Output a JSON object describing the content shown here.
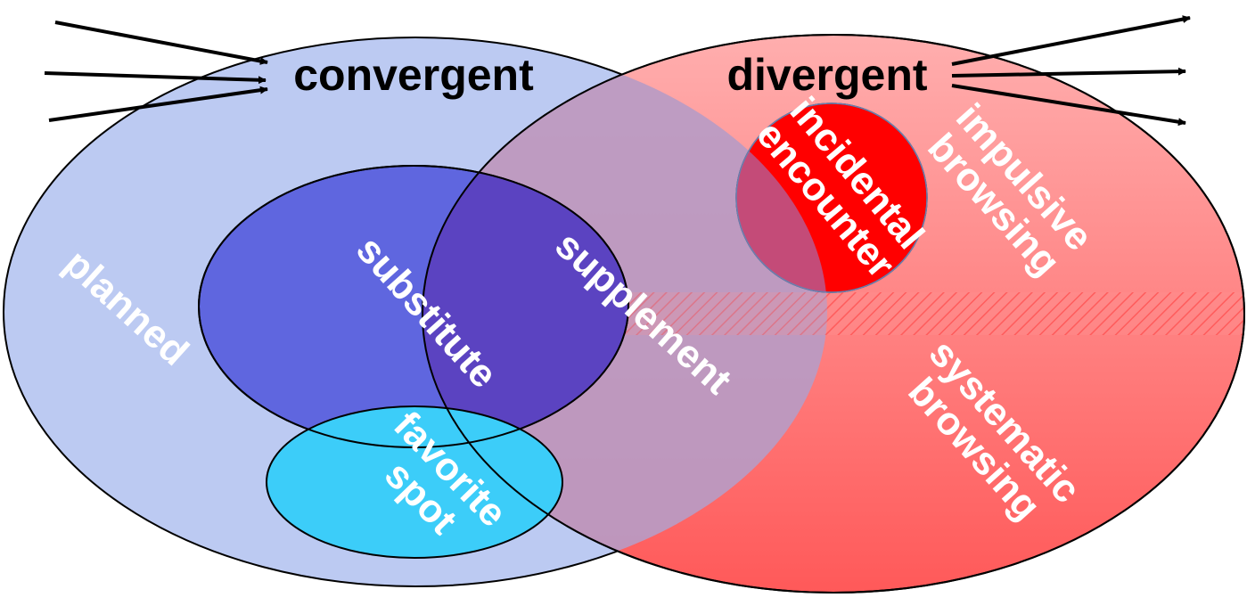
{
  "diagram": {
    "titles": {
      "convergent": "convergent",
      "divergent": "divergent"
    },
    "regions": {
      "planned": "planned",
      "substitute": "substitute",
      "supplement": "supplement",
      "favorite_spot": [
        "favorite",
        "spot"
      ],
      "incidental_encounter": [
        "incidental",
        "encounter"
      ],
      "impulsive_browsing": [
        "impulsive",
        "browsing"
      ],
      "systematic_browsing": [
        "systematic",
        "browsing"
      ]
    },
    "colors": {
      "convergent_fill": "#bccaf2",
      "divergent_fill": "#ff7a7a",
      "overlap_fill": "#b99bc4",
      "substitute_fill": "#5f66df",
      "favorite_spot_fill": "#3ccdf9",
      "incidental_fill": "#ff0000",
      "outline": "#000000",
      "arrow": "#000000",
      "label_text": "#ffffff"
    },
    "icons": {
      "incoming": "arrow-right-icon",
      "outgoing": "arrow-right-icon"
    }
  }
}
